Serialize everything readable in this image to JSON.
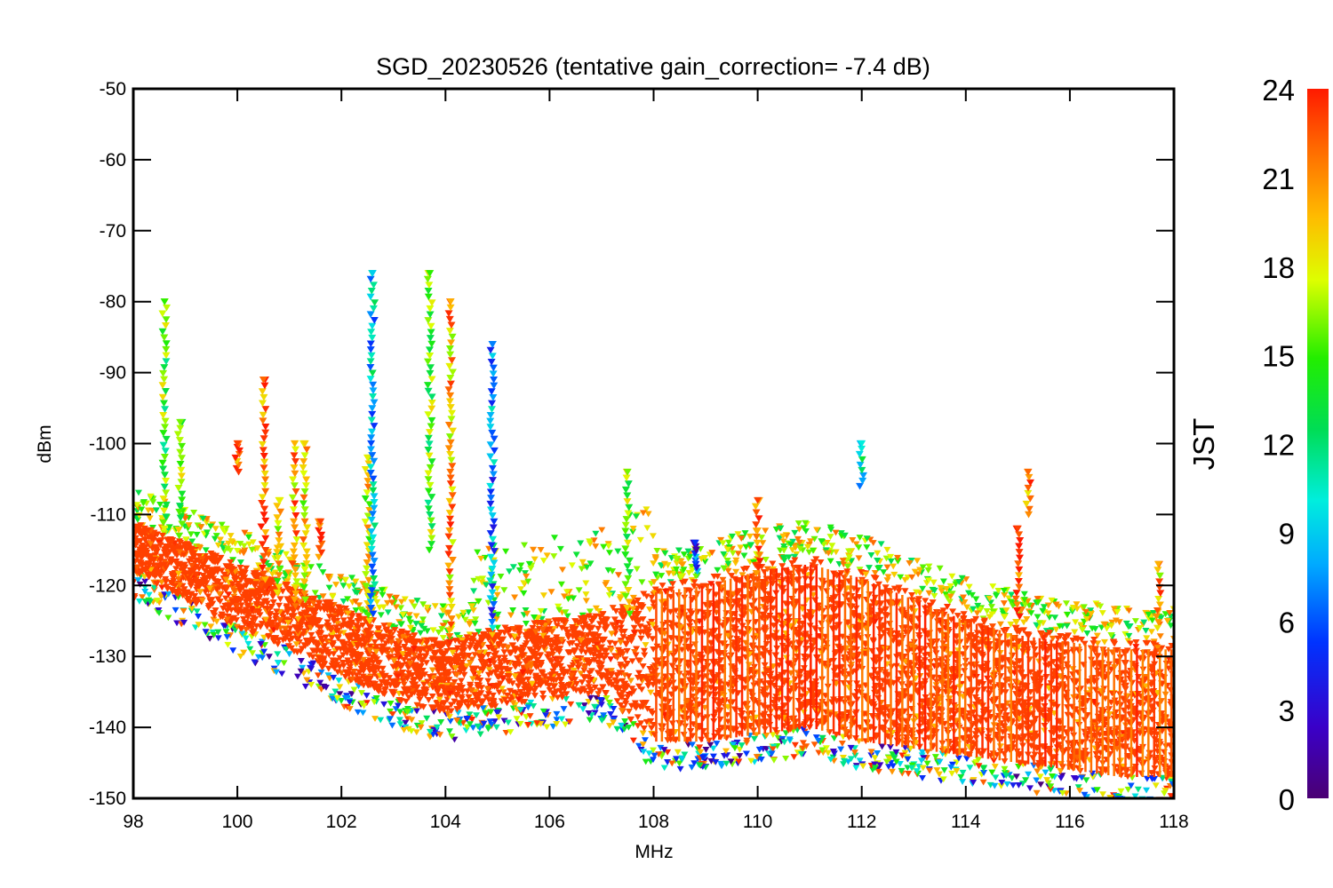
{
  "chart_data": {
    "type": "scatter",
    "title": "SGD_20230526 (tentative gain_correction= -7.4 dB)",
    "xlabel": "MHz",
    "ylabel": "dBm",
    "xlim": [
      98,
      118
    ],
    "ylim": [
      -150,
      -50
    ],
    "x_ticks": [
      "98",
      "100",
      "102",
      "104",
      "106",
      "108",
      "110",
      "112",
      "114",
      "116",
      "118"
    ],
    "y_ticks": [
      "-50",
      "-60",
      "-70",
      "-80",
      "-90",
      "-100",
      "-110",
      "-120",
      "-130",
      "-140",
      "-150"
    ],
    "colorbar": {
      "label": "JST",
      "range": [
        0,
        24
      ],
      "ticks": [
        "24",
        "21",
        "18",
        "15",
        "12",
        "9",
        "6",
        "3",
        "0"
      ],
      "colormap": "rainbow (purple-blue-cyan-green-yellow-orange-red)"
    },
    "grid": false,
    "marker": "downward triangle",
    "noise_floor": {
      "x": [
        98,
        99,
        100,
        101,
        102,
        103,
        104,
        105,
        106,
        107,
        108,
        109,
        110,
        111,
        112,
        113,
        114,
        115,
        116,
        117,
        118
      ],
      "y_top": [
        -111,
        -114,
        -117,
        -120,
        -123,
        -126,
        -128,
        -126,
        -125,
        -124,
        -120,
        -119,
        -117,
        -116,
        -118,
        -121,
        -124,
        -126,
        -127,
        -128,
        -128
      ],
      "y_bottom": [
        -118,
        -122,
        -126,
        -129,
        -133,
        -136,
        -138,
        -137,
        -136,
        -135,
        -142,
        -142,
        -141,
        -140,
        -142,
        -143,
        -144,
        -145,
        -146,
        -147,
        -147
      ],
      "dominant_hour": 23
    },
    "peaks": [
      {
        "x": 98.6,
        "y_top": -80,
        "y_bottom": -112,
        "hour": 15
      },
      {
        "x": 98.9,
        "y_top": -97,
        "y_bottom": -113,
        "hour": 16
      },
      {
        "x": 100.0,
        "y_top": -100,
        "y_bottom": -104,
        "hour": 23
      },
      {
        "x": 100.5,
        "y_top": -91,
        "y_bottom": -120,
        "hour": 22
      },
      {
        "x": 100.8,
        "y_top": -108,
        "y_bottom": -121,
        "hour": 18
      },
      {
        "x": 101.1,
        "y_top": -100,
        "y_bottom": -122,
        "hour": 20
      },
      {
        "x": 101.3,
        "y_top": -100,
        "y_bottom": -122,
        "hour": 19
      },
      {
        "x": 101.6,
        "y_top": -111,
        "y_bottom": -116,
        "hour": 23
      },
      {
        "x": 102.5,
        "y_top": -102,
        "y_bottom": -125,
        "hour": 18
      },
      {
        "x": 102.6,
        "y_top": -76,
        "y_bottom": -124,
        "hour": 9
      },
      {
        "x": 103.7,
        "y_top": -76,
        "y_bottom": -115,
        "hour": 15
      },
      {
        "x": 104.1,
        "y_top": -80,
        "y_bottom": -128,
        "hour": 20
      },
      {
        "x": 104.9,
        "y_top": -86,
        "y_bottom": -126,
        "hour": 7
      },
      {
        "x": 107.5,
        "y_top": -104,
        "y_bottom": -124,
        "hour": 16
      },
      {
        "x": 108.8,
        "y_top": -114,
        "y_bottom": -118,
        "hour": 5
      },
      {
        "x": 110.0,
        "y_top": -108,
        "y_bottom": -120,
        "hour": 23
      },
      {
        "x": 112.0,
        "y_top": -100,
        "y_bottom": -106,
        "hour": 10
      },
      {
        "x": 115.0,
        "y_top": -112,
        "y_bottom": -126,
        "hour": 23
      },
      {
        "x": 115.2,
        "y_top": -104,
        "y_bottom": -110,
        "hour": 22
      },
      {
        "x": 117.7,
        "y_top": -117,
        "y_bottom": -126,
        "hour": 20
      }
    ]
  },
  "colors": {
    "background": "#ffffff",
    "axis": "#000000",
    "dominant_marker": "#ff3a00"
  }
}
